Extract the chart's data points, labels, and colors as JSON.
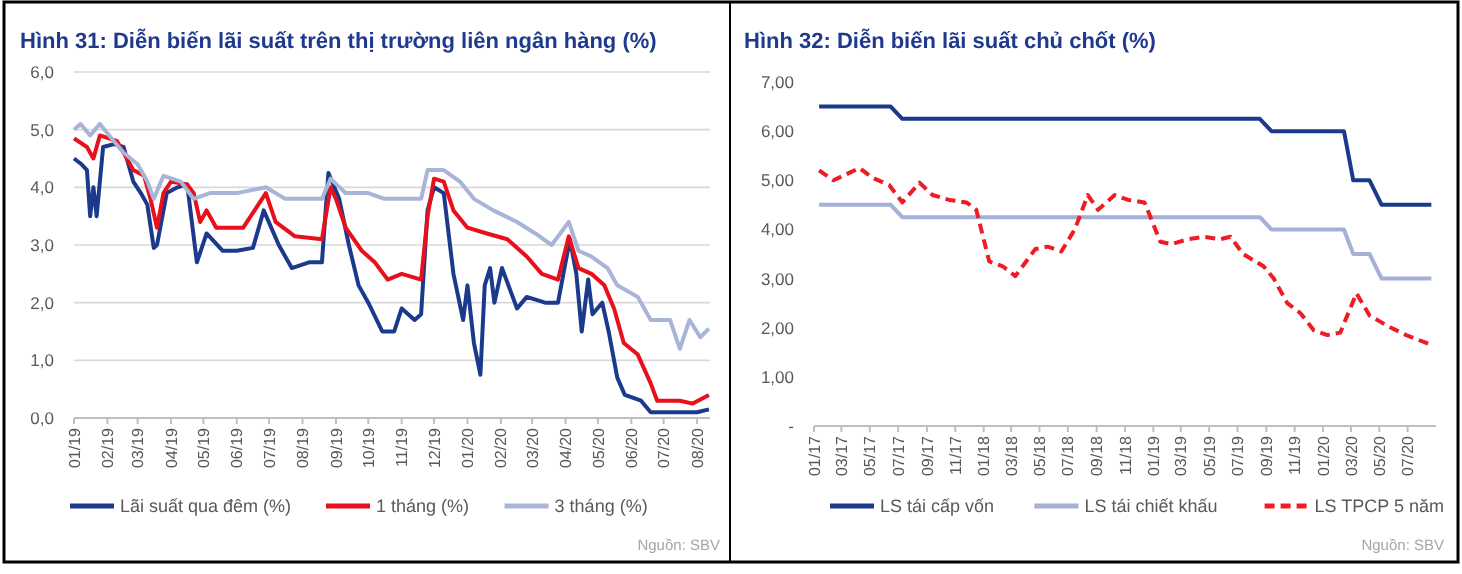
{
  "chart_data": [
    {
      "type": "line",
      "title": "Hình 31: Diễn biến lãi suất trên thị trường liên ngân hàng (%)",
      "legend": "bottom",
      "grid": "y",
      "annotations": [
        "Nguồn: SBV"
      ],
      "xlim": [
        "2019-01-01",
        "2020-08-13"
      ],
      "xticks": [
        {
          "value": "2019-01-01",
          "label": "01/19"
        },
        {
          "value": "2019-02-01",
          "label": "02/19"
        },
        {
          "value": "2019-03-01",
          "label": "03/19"
        },
        {
          "value": "2019-04-01",
          "label": "04/19"
        },
        {
          "value": "2019-05-01",
          "label": "05/19"
        },
        {
          "value": "2019-06-01",
          "label": "06/19"
        },
        {
          "value": "2019-07-01",
          "label": "07/19"
        },
        {
          "value": "2019-08-01",
          "label": "08/19"
        },
        {
          "value": "2019-09-01",
          "label": "09/19"
        },
        {
          "value": "2019-10-01",
          "label": "10/19"
        },
        {
          "value": "2019-11-01",
          "label": "11/19"
        },
        {
          "value": "2019-12-01",
          "label": "12/19"
        },
        {
          "value": "2020-01-01",
          "label": "01/20"
        },
        {
          "value": "2020-02-01",
          "label": "02/20"
        },
        {
          "value": "2020-03-01",
          "label": "03/20"
        },
        {
          "value": "2020-04-01",
          "label": "04/20"
        },
        {
          "value": "2020-05-01",
          "label": "05/20"
        },
        {
          "value": "2020-06-01",
          "label": "06/20"
        },
        {
          "value": "2020-07-01",
          "label": "07/20"
        },
        {
          "value": "2020-08-01",
          "label": "08/20"
        }
      ],
      "ylim": [
        0,
        6
      ],
      "yticks": [
        {
          "value": 0,
          "label": "0,0"
        },
        {
          "value": 1,
          "label": "1,0"
        },
        {
          "value": 2,
          "label": "2,0"
        },
        {
          "value": 3,
          "label": "3,0"
        },
        {
          "value": 4,
          "label": "4,0"
        },
        {
          "value": 5,
          "label": "5,0"
        },
        {
          "value": 6,
          "label": "6,0"
        }
      ],
      "series": [
        {
          "name": "Lãi suất qua đêm (%)",
          "color": "#1b3a8c",
          "x": [
            "2019-01-01",
            "2019-01-08",
            "2019-01-13",
            "2019-01-16",
            "2019-01-19",
            "2019-01-22",
            "2019-01-28",
            "2019-02-07",
            "2019-02-16",
            "2019-02-25",
            "2019-03-04",
            "2019-03-10",
            "2019-03-16",
            "2019-03-19",
            "2019-03-28",
            "2019-04-07",
            "2019-04-16",
            "2019-04-25",
            "2019-05-04",
            "2019-05-19",
            "2019-06-01",
            "2019-06-16",
            "2019-06-26",
            "2019-07-10",
            "2019-07-22",
            "2019-08-07",
            "2019-08-19",
            "2019-08-25",
            "2019-09-04",
            "2019-09-13",
            "2019-09-22",
            "2019-10-01",
            "2019-10-14",
            "2019-10-25",
            "2019-11-01",
            "2019-11-13",
            "2019-11-19",
            "2019-11-25",
            "2019-12-01",
            "2019-12-10",
            "2019-12-19",
            "2019-12-28",
            "2020-01-01",
            "2020-01-07",
            "2020-01-13",
            "2020-01-17",
            "2020-01-22",
            "2020-01-26",
            "2020-02-02",
            "2020-02-10",
            "2020-02-16",
            "2020-02-25",
            "2020-03-13",
            "2020-03-25",
            "2020-04-05",
            "2020-04-11",
            "2020-04-16",
            "2020-04-22",
            "2020-04-26",
            "2020-05-05",
            "2020-05-11",
            "2020-05-19",
            "2020-05-26",
            "2020-06-10",
            "2020-06-19",
            "2020-07-16",
            "2020-08-01",
            "2020-08-12"
          ],
          "values": [
            4.5,
            4.4,
            4.3,
            3.5,
            4.0,
            3.5,
            4.7,
            4.75,
            4.7,
            4.1,
            3.9,
            3.7,
            2.95,
            3.0,
            3.9,
            4.0,
            4.05,
            2.7,
            3.2,
            2.9,
            2.9,
            2.95,
            3.6,
            3.0,
            2.6,
            2.7,
            2.7,
            4.25,
            3.8,
            3.0,
            2.3,
            2.0,
            1.5,
            1.5,
            1.9,
            1.7,
            1.8,
            3.6,
            4.0,
            3.9,
            2.5,
            1.7,
            2.3,
            1.3,
            0.75,
            2.3,
            2.6,
            2.0,
            2.6,
            2.2,
            1.9,
            2.1,
            2.0,
            2.0,
            3.1,
            2.5,
            1.5,
            2.4,
            1.8,
            2.0,
            1.5,
            0.7,
            0.4,
            0.3,
            0.1,
            0.1,
            0.1,
            0.15
          ]
        },
        {
          "name": "1 tháng (%)",
          "color": "#e8101c",
          "x": [
            "2019-01-01",
            "2019-01-13",
            "2019-01-19",
            "2019-01-25",
            "2019-02-10",
            "2019-02-16",
            "2019-02-25",
            "2019-03-07",
            "2019-03-13",
            "2019-03-19",
            "2019-03-25",
            "2019-04-01",
            "2019-04-16",
            "2019-04-22",
            "2019-04-28",
            "2019-05-04",
            "2019-05-13",
            "2019-06-07",
            "2019-06-28",
            "2019-07-07",
            "2019-07-25",
            "2019-08-19",
            "2019-08-27",
            "2019-09-01",
            "2019-09-10",
            "2019-09-25",
            "2019-10-07",
            "2019-10-19",
            "2019-11-01",
            "2019-11-19",
            "2019-11-25",
            "2019-12-01",
            "2019-12-10",
            "2019-12-19",
            "2020-01-01",
            "2020-01-19",
            "2020-02-07",
            "2020-02-25",
            "2020-03-10",
            "2020-03-25",
            "2020-04-04",
            "2020-04-13",
            "2020-04-25",
            "2020-05-07",
            "2020-05-16",
            "2020-05-25",
            "2020-06-07",
            "2020-06-19",
            "2020-06-25",
            "2020-07-16",
            "2020-07-28",
            "2020-08-12"
          ],
          "values": [
            4.85,
            4.7,
            4.5,
            4.9,
            4.8,
            4.6,
            4.3,
            4.2,
            3.8,
            3.3,
            3.9,
            4.1,
            4.05,
            3.9,
            3.4,
            3.6,
            3.3,
            3.3,
            3.9,
            3.4,
            3.15,
            3.1,
            4.0,
            3.8,
            3.3,
            2.9,
            2.7,
            2.4,
            2.5,
            2.4,
            3.5,
            4.15,
            4.1,
            3.6,
            3.3,
            3.2,
            3.1,
            2.8,
            2.5,
            2.4,
            3.15,
            2.6,
            2.5,
            2.3,
            1.9,
            1.3,
            1.1,
            0.6,
            0.3,
            0.3,
            0.25,
            0.4
          ]
        },
        {
          "name": "3 tháng (%)",
          "color": "#a9b4d9",
          "x": [
            "2019-01-01",
            "2019-01-07",
            "2019-01-16",
            "2019-01-25",
            "2019-02-07",
            "2019-02-16",
            "2019-03-01",
            "2019-03-10",
            "2019-03-16",
            "2019-03-25",
            "2019-04-10",
            "2019-04-22",
            "2019-05-07",
            "2019-06-01",
            "2019-06-28",
            "2019-07-16",
            "2019-08-19",
            "2019-08-27",
            "2019-09-10",
            "2019-10-01",
            "2019-10-16",
            "2019-11-19",
            "2019-11-25",
            "2019-12-10",
            "2019-12-25",
            "2020-01-07",
            "2020-01-25",
            "2020-02-16",
            "2020-03-04",
            "2020-03-19",
            "2020-04-04",
            "2020-04-13",
            "2020-04-25",
            "2020-05-10",
            "2020-05-19",
            "2020-06-07",
            "2020-06-19",
            "2020-07-07",
            "2020-07-16",
            "2020-07-25",
            "2020-08-04",
            "2020-08-12"
          ],
          "values": [
            5.0,
            5.1,
            4.9,
            5.1,
            4.8,
            4.6,
            4.4,
            4.1,
            3.8,
            4.2,
            4.1,
            3.8,
            3.9,
            3.9,
            4.0,
            3.8,
            3.8,
            4.15,
            3.9,
            3.9,
            3.8,
            3.8,
            4.3,
            4.3,
            4.1,
            3.8,
            3.6,
            3.4,
            3.2,
            3.0,
            3.4,
            2.9,
            2.8,
            2.6,
            2.3,
            2.1,
            1.7,
            1.7,
            1.2,
            1.7,
            1.4,
            1.55
          ]
        }
      ]
    },
    {
      "type": "line",
      "title": "Hình 32: Diễn biến lãi suất chủ chốt (%)",
      "legend": "bottom",
      "annotations": [
        "Nguồn: SBV"
      ],
      "xlim": [
        "2017-01-01",
        "2020-08-31"
      ],
      "xticks": [
        {
          "value": "2017-01-01",
          "label": "01/17"
        },
        {
          "value": "2017-03-01",
          "label": "03/17"
        },
        {
          "value": "2017-05-01",
          "label": "05/17"
        },
        {
          "value": "2017-07-01",
          "label": "07/17"
        },
        {
          "value": "2017-09-01",
          "label": "09/17"
        },
        {
          "value": "2017-11-01",
          "label": "11/17"
        },
        {
          "value": "2018-01-01",
          "label": "01/18"
        },
        {
          "value": "2018-03-01",
          "label": "03/18"
        },
        {
          "value": "2018-05-01",
          "label": "05/18"
        },
        {
          "value": "2018-07-01",
          "label": "07/18"
        },
        {
          "value": "2018-09-01",
          "label": "09/18"
        },
        {
          "value": "2018-11-01",
          "label": "11/18"
        },
        {
          "value": "2019-01-01",
          "label": "01/19"
        },
        {
          "value": "2019-03-01",
          "label": "03/19"
        },
        {
          "value": "2019-05-01",
          "label": "05/19"
        },
        {
          "value": "2019-07-01",
          "label": "07/19"
        },
        {
          "value": "2019-09-01",
          "label": "09/19"
        },
        {
          "value": "2019-11-01",
          "label": "11/19"
        },
        {
          "value": "2020-01-01",
          "label": "01/20"
        },
        {
          "value": "2020-03-01",
          "label": "03/20"
        },
        {
          "value": "2020-05-01",
          "label": "05/20"
        },
        {
          "value": "2020-07-01",
          "label": "07/20"
        }
      ],
      "ylim": [
        0,
        7
      ],
      "yticks": [
        {
          "value": 0,
          "label": "-"
        },
        {
          "value": 1,
          "label": "1,00"
        },
        {
          "value": 2,
          "label": "2,00"
        },
        {
          "value": 3,
          "label": "3,00"
        },
        {
          "value": 4,
          "label": "4,00"
        },
        {
          "value": 5,
          "label": "5,00"
        },
        {
          "value": 6,
          "label": "6,00"
        },
        {
          "value": 7,
          "label": "7,00"
        }
      ],
      "series": [
        {
          "name": "LS tái cấp vốn",
          "color": "#1b3a8c",
          "line_style": "solid",
          "x": [
            "2017-01-12",
            "2017-06-15",
            "2017-07-10",
            "2019-08-18",
            "2019-09-12",
            "2020-02-15",
            "2020-03-06",
            "2020-04-10",
            "2020-05-06",
            "2020-08-21"
          ],
          "values": [
            6.5,
            6.5,
            6.25,
            6.25,
            6.0,
            6.0,
            5.0,
            5.0,
            4.5,
            4.5
          ]
        },
        {
          "name": "LS tái chiết khấu",
          "color": "#a4b0d8",
          "line_style": "solid",
          "x": [
            "2017-01-12",
            "2017-06-15",
            "2017-07-10",
            "2019-08-18",
            "2019-09-12",
            "2020-02-15",
            "2020-03-06",
            "2020-04-10",
            "2020-05-06",
            "2020-08-21"
          ],
          "values": [
            4.5,
            4.5,
            4.25,
            4.25,
            4.0,
            4.0,
            3.5,
            3.5,
            3.0,
            3.0
          ]
        },
        {
          "name": "LS TPCP 5 năm",
          "color": "#ee1c25",
          "line_style": "dashed",
          "x": [
            "2017-01-12",
            "2017-02-12",
            "2017-04-09",
            "2017-05-07",
            "2017-06-12",
            "2017-07-10",
            "2017-08-16",
            "2017-09-13",
            "2017-10-19",
            "2017-11-25",
            "2017-12-16",
            "2018-01-13",
            "2018-02-11",
            "2018-03-10",
            "2018-04-22",
            "2018-05-19",
            "2018-06-17",
            "2018-07-16",
            "2018-08-13",
            "2018-09-04",
            "2018-10-10",
            "2018-11-08",
            "2018-12-13",
            "2019-01-16",
            "2019-02-09",
            "2019-03-16",
            "2019-04-19",
            "2019-05-25",
            "2019-06-16",
            "2019-07-13",
            "2019-08-26",
            "2019-09-17",
            "2019-10-16",
            "2019-11-13",
            "2019-12-12",
            "2020-01-10",
            "2020-02-07",
            "2020-03-13",
            "2020-04-10",
            "2020-05-16",
            "2020-06-28",
            "2020-08-21"
          ],
          "values": [
            5.2,
            5.0,
            5.25,
            5.05,
            4.9,
            4.55,
            4.95,
            4.7,
            4.6,
            4.55,
            4.4,
            3.35,
            3.25,
            3.05,
            3.6,
            3.65,
            3.55,
            4.0,
            4.7,
            4.4,
            4.7,
            4.6,
            4.55,
            3.75,
            3.7,
            3.8,
            3.85,
            3.8,
            3.85,
            3.5,
            3.25,
            3.0,
            2.5,
            2.3,
            1.95,
            1.85,
            1.9,
            2.7,
            2.25,
            2.05,
            1.85,
            1.65
          ]
        }
      ]
    }
  ]
}
